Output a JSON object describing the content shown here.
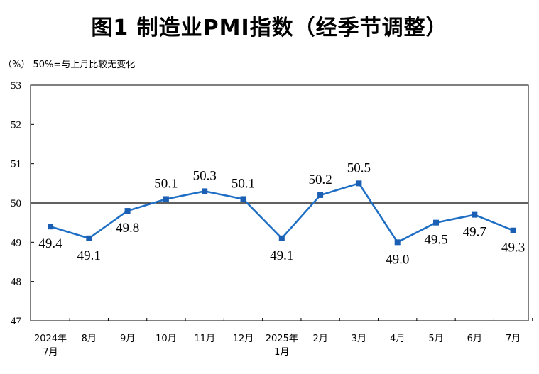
{
  "title": "图1  制造业PMI指数（经季节调整）",
  "unit_note": "（%）  50%=与上月比较无变化",
  "colors": {
    "line": "#1f6fc5",
    "marker": "#1a5fb4",
    "axis": "#000000"
  },
  "chart_data": {
    "type": "line",
    "title": "图1  制造业PMI指数（经季节调整）",
    "ylabel": "（%）",
    "xlabel": "",
    "ylim": [
      47,
      53
    ],
    "yticks": [
      47,
      48,
      49,
      50,
      51,
      52,
      53
    ],
    "reference_line": 50,
    "grid": false,
    "categories": [
      "2024年7月",
      "8月",
      "9月",
      "10月",
      "11月",
      "12月",
      "2025年1月",
      "2月",
      "3月",
      "4月",
      "5月",
      "6月",
      "7月"
    ],
    "x_tick_lines": [
      [
        "2024年",
        "7月"
      ],
      [
        "8月"
      ],
      [
        "9月"
      ],
      [
        "10月"
      ],
      [
        "11月"
      ],
      [
        "12月"
      ],
      [
        "2025年",
        "1月"
      ],
      [
        "2月"
      ],
      [
        "3月"
      ],
      [
        "4月"
      ],
      [
        "5月"
      ],
      [
        "6月"
      ],
      [
        "7月"
      ]
    ],
    "series": [
      {
        "values": [
          49.4,
          49.1,
          49.8,
          50.1,
          50.3,
          50.1,
          49.1,
          50.2,
          50.5,
          49.0,
          49.5,
          49.7,
          49.3
        ]
      }
    ],
    "data_labels": [
      "49.4",
      "49.1",
      "49.8",
      "50.1",
      "50.3",
      "50.1",
      "49.1",
      "50.2",
      "50.5",
      "49.0",
      "49.5",
      "49.7",
      "49.3"
    ]
  }
}
